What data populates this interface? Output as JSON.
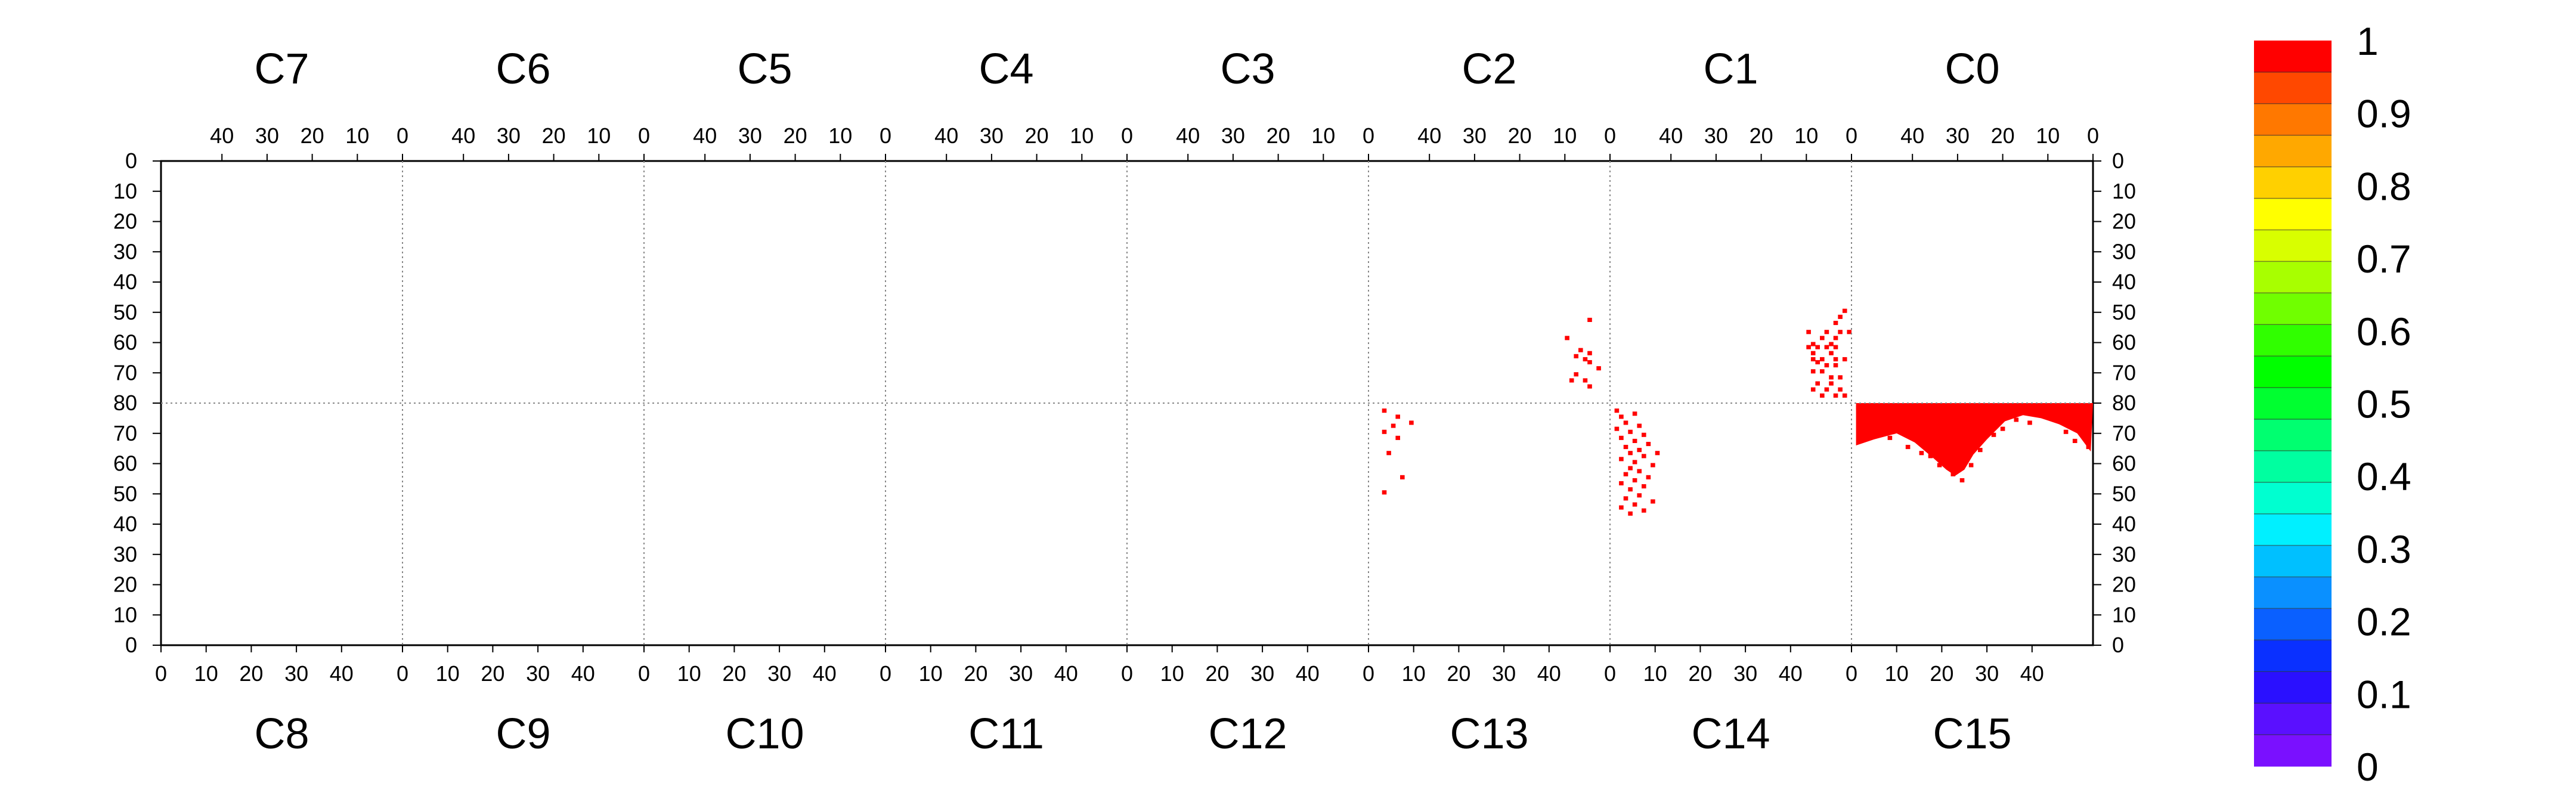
{
  "chart_data": {
    "type": "heatmap",
    "title": "",
    "top_chambers": [
      "C7",
      "C6",
      "C5",
      "C4",
      "C3",
      "C2",
      "C1",
      "C0"
    ],
    "bottom_chambers": [
      "C8",
      "C9",
      "C10",
      "C11",
      "C12",
      "C13",
      "C14",
      "C15"
    ],
    "top_x_ticks": [
      "40",
      "30",
      "20",
      "10",
      "0"
    ],
    "bottom_x_ticks": [
      "0",
      "10",
      "20",
      "30",
      "40"
    ],
    "y_ticks_upper": [
      "0",
      "10",
      "20",
      "30",
      "40",
      "50",
      "60",
      "70",
      "80"
    ],
    "y_ticks_lower": [
      "80",
      "70",
      "60",
      "50",
      "40",
      "30",
      "20",
      "10",
      "0"
    ],
    "x_range": [
      0,
      53
    ],
    "y_range": [
      0,
      80
    ],
    "grid": "dotted chamber boundaries",
    "colorbar": {
      "ticks": [
        "0",
        "0.1",
        "0.2",
        "0.3",
        "0.4",
        "0.5",
        "0.6",
        "0.7",
        "0.8",
        "0.9",
        "1"
      ],
      "range": [
        0,
        1
      ],
      "colors": [
        "#7a10ff",
        "#5a10ff",
        "#2a10ff",
        "#0a30ff",
        "#0a60ff",
        "#0a90ff",
        "#00c0ff",
        "#00f0ff",
        "#00ffd0",
        "#00ffa0",
        "#00ff70",
        "#00ff30",
        "#00ff00",
        "#30ff00",
        "#70ff00",
        "#a8ff00",
        "#d8ff00",
        "#ffff00",
        "#ffd000",
        "#ffa800",
        "#ff7800",
        "#ff4800",
        "#ff0000"
      ]
    },
    "cell_color": "#ff0000",
    "series": [
      {
        "chamber": "C1",
        "value": 1,
        "cells": [
          [
            1,
            50
          ],
          [
            2,
            52
          ],
          [
            3,
            54
          ],
          [
            0,
            57
          ],
          [
            2,
            57
          ],
          [
            5,
            57
          ],
          [
            9,
            57
          ],
          [
            3,
            59
          ],
          [
            6,
            59
          ],
          [
            4,
            61
          ],
          [
            8,
            61
          ],
          [
            3,
            62
          ],
          [
            5,
            62
          ],
          [
            7,
            62
          ],
          [
            9,
            62
          ],
          [
            4,
            64
          ],
          [
            8,
            64
          ],
          [
            1,
            66
          ],
          [
            3,
            66
          ],
          [
            6,
            66
          ],
          [
            8,
            66
          ],
          [
            7,
            67
          ],
          [
            3,
            68
          ],
          [
            5,
            68
          ],
          [
            6,
            70
          ],
          [
            8,
            70
          ],
          [
            2,
            72
          ],
          [
            4,
            72
          ],
          [
            4,
            74
          ],
          [
            7,
            74
          ],
          [
            2,
            76
          ],
          [
            5,
            76
          ],
          [
            8,
            76
          ],
          [
            1,
            78
          ],
          [
            3,
            78
          ],
          [
            6,
            78
          ]
        ]
      },
      {
        "chamber": "C2",
        "value": 1,
        "cells": [
          [
            4,
            53
          ],
          [
            9,
            59
          ],
          [
            6,
            63
          ],
          [
            4,
            64
          ],
          [
            7,
            65
          ],
          [
            5,
            66
          ],
          [
            4,
            67
          ],
          [
            2,
            69
          ],
          [
            7,
            71
          ],
          [
            5,
            73
          ],
          [
            8,
            73
          ],
          [
            4,
            75
          ]
        ]
      },
      {
        "chamber": "C13",
        "value": 1,
        "cells": [
          [
            3,
            51
          ],
          [
            7,
            56
          ],
          [
            4,
            64
          ],
          [
            6,
            69
          ],
          [
            3,
            71
          ],
          [
            5,
            73
          ],
          [
            9,
            74
          ],
          [
            6,
            76
          ],
          [
            3,
            78
          ]
        ]
      },
      {
        "chamber": "C14",
        "value": 1,
        "cells": [
          [
            4,
            44
          ],
          [
            7,
            45
          ],
          [
            2,
            46
          ],
          [
            5,
            47
          ],
          [
            9,
            48
          ],
          [
            3,
            49
          ],
          [
            6,
            50
          ],
          [
            4,
            52
          ],
          [
            7,
            53
          ],
          [
            2,
            54
          ],
          [
            5,
            55
          ],
          [
            8,
            56
          ],
          [
            3,
            57
          ],
          [
            6,
            58
          ],
          [
            4,
            59
          ],
          [
            9,
            60
          ],
          [
            5,
            61
          ],
          [
            2,
            62
          ],
          [
            7,
            63
          ],
          [
            4,
            64
          ],
          [
            10,
            64
          ],
          [
            6,
            65
          ],
          [
            3,
            66
          ],
          [
            8,
            67
          ],
          [
            5,
            68
          ],
          [
            2,
            69
          ],
          [
            7,
            70
          ],
          [
            4,
            71
          ],
          [
            1,
            72
          ],
          [
            6,
            73
          ],
          [
            3,
            74
          ],
          [
            2,
            76
          ],
          [
            5,
            77
          ],
          [
            1,
            78
          ]
        ]
      },
      {
        "chamber": "C15",
        "value": 1,
        "filled_region": {
          "y_from": 80,
          "y_bottom_by_x": [
            [
              1,
              66
            ],
            [
              5,
              68
            ],
            [
              10,
              70
            ],
            [
              14,
              67
            ],
            [
              18,
              62
            ],
            [
              21,
              58
            ],
            [
              23,
              56
            ],
            [
              25,
              58
            ],
            [
              27,
              63
            ],
            [
              30,
              68
            ],
            [
              34,
              74
            ],
            [
              38,
              76
            ],
            [
              42,
              75
            ],
            [
              46,
              73
            ],
            [
              50,
              70
            ],
            [
              53,
              64
            ]
          ]
        },
        "speckle_cells": [
          [
            1,
            79
          ],
          [
            3,
            77
          ],
          [
            6,
            71
          ],
          [
            8,
            69
          ],
          [
            12,
            66
          ],
          [
            15,
            64
          ],
          [
            17,
            63
          ],
          [
            19,
            60
          ],
          [
            22,
            57
          ],
          [
            24,
            55
          ],
          [
            26,
            60
          ],
          [
            28,
            65
          ],
          [
            31,
            70
          ],
          [
            33,
            72
          ],
          [
            36,
            75
          ],
          [
            39,
            74
          ],
          [
            41,
            77
          ],
          [
            44,
            76
          ],
          [
            47,
            71
          ],
          [
            49,
            68
          ],
          [
            51,
            72
          ],
          [
            52,
            66
          ]
        ]
      }
    ]
  }
}
